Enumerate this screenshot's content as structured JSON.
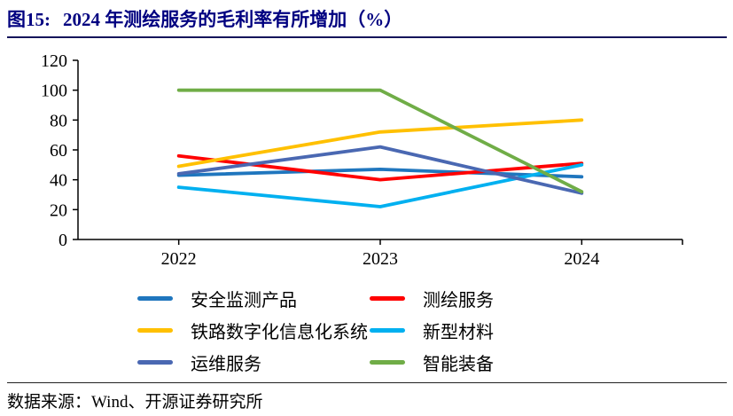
{
  "header": {
    "figure_label": "图15:",
    "title": "2024 年测绘服务的毛利率有所增加（%）"
  },
  "chart_data": {
    "type": "line",
    "title": "2024 年测绘服务的毛利率有所增加（%）",
    "categories": [
      "2022",
      "2023",
      "2024"
    ],
    "series": [
      {
        "name": "安全监测产品",
        "color": "#1F76BE",
        "values": [
          43,
          47,
          42
        ]
      },
      {
        "name": "测绘服务",
        "color": "#FF0000",
        "values": [
          56,
          40,
          51
        ]
      },
      {
        "name": "铁路数字化信息化系统",
        "color": "#FFC000",
        "values": [
          49,
          72,
          80
        ]
      },
      {
        "name": "新型材料",
        "color": "#00B0F0",
        "values": [
          35,
          22,
          50
        ]
      },
      {
        "name": "运维服务",
        "color": "#4A68B2",
        "values": [
          44,
          62,
          31
        ]
      },
      {
        "name": "智能装备",
        "color": "#70AD47",
        "values": [
          100,
          100,
          32
        ]
      }
    ],
    "ylim": [
      0,
      120
    ],
    "ytick_step": 20,
    "yticks": [
      0,
      20,
      40,
      60,
      80,
      100,
      120
    ],
    "xlabel": "",
    "ylabel": "",
    "grid": false,
    "legend_position": "bottom"
  },
  "footer": {
    "source": "数据来源：Wind、开源证券研究所"
  }
}
